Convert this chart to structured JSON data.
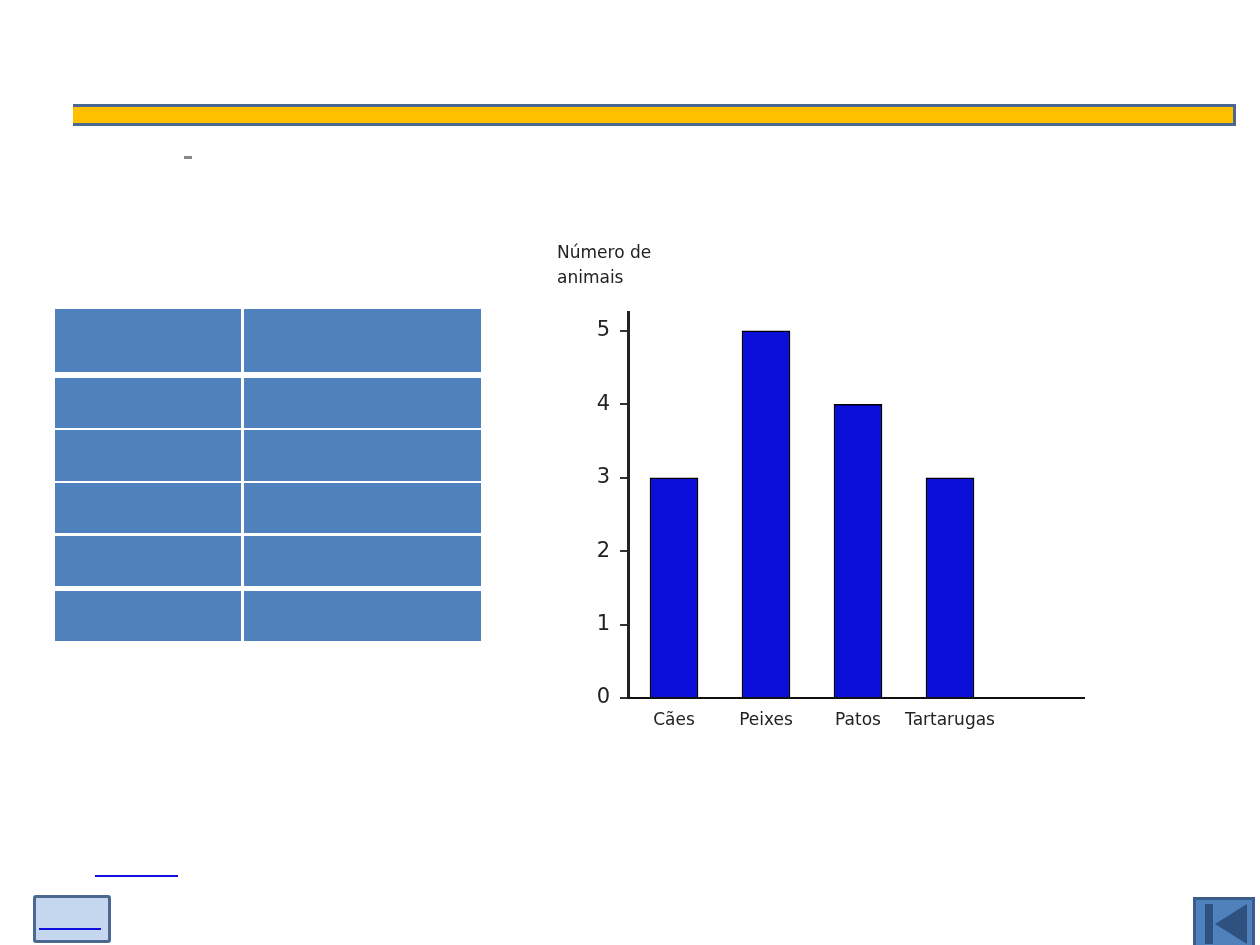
{
  "chart_data": {
    "type": "bar",
    "ylabel": "Número de animais",
    "categories": [
      "Cães",
      "Peixes",
      "Patos",
      "Tartarugas"
    ],
    "values": [
      3,
      5,
      4,
      3
    ],
    "color": "#0c0fd9",
    "ylim": [
      0,
      5.25
    ],
    "yticks": [
      0,
      1,
      2,
      3,
      4,
      5
    ],
    "grid": false
  }
}
